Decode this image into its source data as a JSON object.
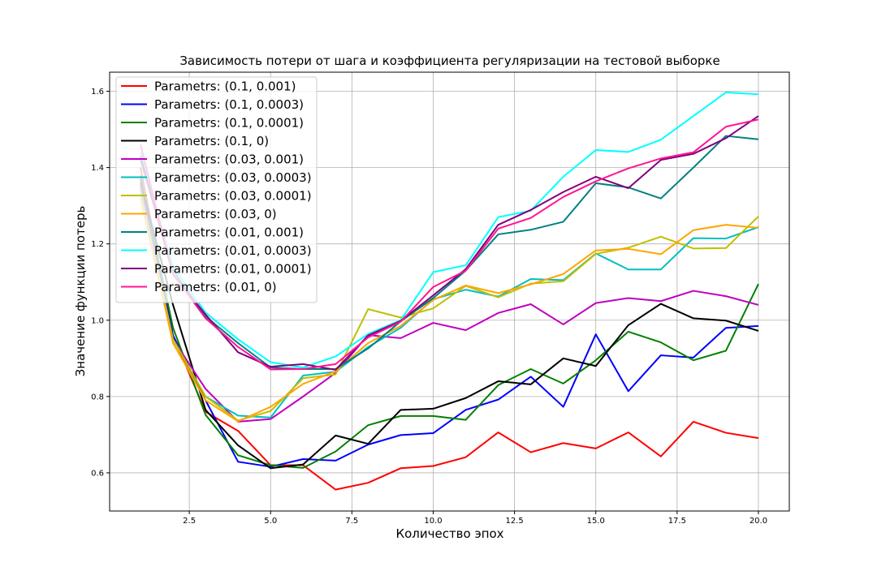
{
  "chart_data": {
    "type": "line",
    "title": "Зависимость потери от шага и коэффициента регуляризации на тестовой выборке",
    "xlabel": "Количество эпох",
    "ylabel": "Значение функции потерь",
    "xlim": [
      0.05,
      20.95
    ],
    "ylim": [
      0.5,
      1.65
    ],
    "xticks": [
      2.5,
      5.0,
      7.5,
      10.0,
      12.5,
      15.0,
      17.5,
      20.0
    ],
    "xtick_labels": [
      "2.5",
      "5.0",
      "7.5",
      "10.0",
      "12.5",
      "15.0",
      "17.5",
      "20.0"
    ],
    "yticks": [
      0.6,
      0.8,
      1.0,
      1.2,
      1.4,
      1.6
    ],
    "ytick_labels": [
      "0.6",
      "0.8",
      "1.0",
      "1.2",
      "1.4",
      "1.6"
    ],
    "grid": true,
    "legend_position": "top-left",
    "x": [
      1,
      2,
      3,
      4,
      5,
      6,
      7,
      8,
      9,
      10,
      11,
      12,
      13,
      14,
      15,
      16,
      17,
      18,
      19,
      20
    ],
    "series": [
      {
        "name": "Parametrs: (0.1, 0.001)",
        "color": "#ff0000",
        "values": [
          1.4,
          0.96,
          0.76,
          0.71,
          0.62,
          0.62,
          0.556,
          0.574,
          0.612,
          0.618,
          0.641,
          0.706,
          0.654,
          0.678,
          0.664,
          0.706,
          0.643,
          0.734,
          0.705,
          0.691
        ]
      },
      {
        "name": "Parametrs: (0.1, 0.0003)",
        "color": "#0000ff",
        "values": [
          1.37,
          0.96,
          0.79,
          0.629,
          0.616,
          0.636,
          0.632,
          0.674,
          0.699,
          0.704,
          0.765,
          0.792,
          0.852,
          0.773,
          0.963,
          0.814,
          0.908,
          0.902,
          0.98,
          0.985
        ]
      },
      {
        "name": "Parametrs: (0.1, 0.0001)",
        "color": "#008000",
        "values": [
          1.38,
          0.98,
          0.752,
          0.646,
          0.62,
          0.613,
          0.656,
          0.725,
          0.749,
          0.749,
          0.739,
          0.83,
          0.872,
          0.834,
          0.895,
          0.97,
          0.942,
          0.895,
          0.92,
          1.095
        ]
      },
      {
        "name": "Parametrs: (0.1, 0)",
        "color": "#000000",
        "values": [
          1.36,
          1.04,
          0.765,
          0.672,
          0.612,
          0.622,
          0.698,
          0.676,
          0.765,
          0.768,
          0.796,
          0.84,
          0.832,
          0.9,
          0.88,
          0.987,
          1.043,
          1.005,
          0.999,
          0.972
        ]
      },
      {
        "name": "Parametrs: (0.03, 0.001)",
        "color": "#bf00bf",
        "values": [
          1.35,
          0.95,
          0.82,
          0.734,
          0.741,
          0.8,
          0.862,
          0.961,
          0.953,
          0.993,
          0.974,
          1.019,
          1.042,
          0.989,
          1.045,
          1.058,
          1.05,
          1.077,
          1.063,
          1.04
        ]
      },
      {
        "name": "Parametrs: (0.03, 0.0003)",
        "color": "#00bfbf",
        "values": [
          1.34,
          0.95,
          0.8,
          0.75,
          0.745,
          0.855,
          0.865,
          0.93,
          0.98,
          1.055,
          1.08,
          1.062,
          1.108,
          1.105,
          1.175,
          1.133,
          1.133,
          1.215,
          1.214,
          1.244
        ]
      },
      {
        "name": "Parametrs: (0.03, 0.0001)",
        "color": "#bfbf00",
        "values": [
          1.33,
          0.95,
          0.8,
          0.737,
          0.762,
          0.848,
          0.858,
          1.029,
          1.007,
          1.031,
          1.09,
          1.06,
          1.096,
          1.102,
          1.174,
          1.19,
          1.219,
          1.188,
          1.189,
          1.272
        ]
      },
      {
        "name": "Parametrs: (0.03, 0)",
        "color": "#ffa500",
        "values": [
          1.32,
          0.94,
          0.79,
          0.735,
          0.773,
          0.833,
          0.866,
          0.94,
          0.985,
          1.053,
          1.091,
          1.071,
          1.094,
          1.121,
          1.183,
          1.187,
          1.173,
          1.236,
          1.25,
          1.242
        ]
      },
      {
        "name": "Parametrs: (0.01, 0.001)",
        "color": "#008080",
        "values": [
          1.42,
          1.13,
          1.01,
          0.94,
          0.876,
          0.872,
          0.872,
          0.926,
          0.997,
          1.058,
          1.13,
          1.225,
          1.237,
          1.258,
          1.359,
          1.348,
          1.319,
          1.4,
          1.483,
          1.474
        ]
      },
      {
        "name": "Parametrs: (0.01, 0.0003)",
        "color": "#00ffff",
        "values": [
          1.44,
          1.14,
          1.02,
          0.95,
          0.89,
          0.876,
          0.905,
          0.964,
          1.0,
          1.126,
          1.144,
          1.27,
          1.287,
          1.376,
          1.446,
          1.441,
          1.473,
          1.535,
          1.597,
          1.592
        ]
      },
      {
        "name": "Parametrs: (0.01, 0.0001)",
        "color": "#800080",
        "values": [
          1.43,
          1.12,
          1.015,
          0.916,
          0.878,
          0.885,
          0.87,
          0.96,
          0.998,
          1.065,
          1.134,
          1.25,
          1.289,
          1.336,
          1.376,
          1.346,
          1.42,
          1.436,
          1.477,
          1.535
        ]
      },
      {
        "name": "Parametrs: (0.01, 0)",
        "color": "#ff1493",
        "values": [
          1.46,
          1.12,
          1.005,
          0.93,
          0.871,
          0.872,
          0.885,
          0.955,
          0.996,
          1.087,
          1.13,
          1.24,
          1.268,
          1.323,
          1.364,
          1.398,
          1.424,
          1.44,
          1.507,
          1.526
        ]
      }
    ]
  }
}
